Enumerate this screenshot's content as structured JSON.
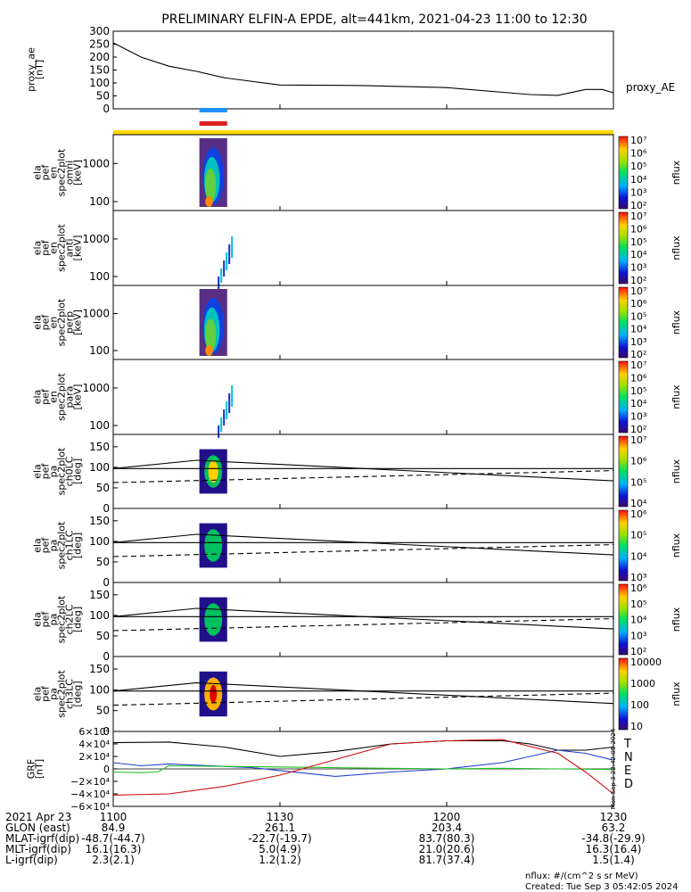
{
  "title": "PRELIMINARY ELFIN-A EPDE, alt=441km, 2021-04-23 11:00 to 12:30",
  "colors": {
    "proxy_ae_line": "#000000",
    "bar_blue": "#1e90ff",
    "bar_red": "#e02020",
    "bar_yellow": "#ffd700",
    "grf_T": "#000000",
    "grf_N": "#1f3fd0",
    "grf_E": "#22c022",
    "grf_D": "#d01010"
  },
  "chart_data": {
    "type": "line",
    "time_axis": {
      "start": "11:00",
      "end": "12:30",
      "tick_labels": [
        "1100",
        "1130",
        "1200",
        "1230"
      ]
    },
    "panels": [
      {
        "id": "proxy_ae",
        "ylabel": [
          "proxy_ae",
          "[nT]"
        ],
        "right_label": "proxy_AE",
        "yticks": [
          "0",
          "50",
          "100",
          "150",
          "200",
          "250",
          "300"
        ],
        "ylim": [
          0,
          300
        ],
        "series": [
          {
            "name": "proxy_AE",
            "x_min": [
              0,
              5,
              10,
              15,
              20,
              30,
              45,
              60,
              75,
              80,
              85,
              88,
              90
            ],
            "values": [
              255,
              200,
              165,
              145,
              120,
              92,
              90,
              82,
              55,
              52,
              75,
              75,
              62
            ]
          }
        ]
      },
      {
        "id": "omni",
        "ylabel": [
          "ela",
          "pef",
          "en",
          "spec2plot",
          "omni",
          "[keV]"
        ],
        "yticks": [
          "100",
          "1000"
        ],
        "colorbar": {
          "label": "nflux",
          "ticks": [
            "10²",
            "10³",
            "10⁴",
            "10⁵",
            "10⁶",
            "10⁷"
          ]
        }
      },
      {
        "id": "anti",
        "ylabel": [
          "ela",
          "pef",
          "en",
          "spec2plot",
          "anti",
          "[keV]"
        ],
        "yticks": [
          "100",
          "1000"
        ],
        "colorbar": {
          "label": "nflux",
          "ticks": [
            "10²",
            "10³",
            "10⁴",
            "10⁵",
            "10⁶",
            "10⁷"
          ]
        }
      },
      {
        "id": "perp",
        "ylabel": [
          "ela",
          "pef",
          "en",
          "spec2plot",
          "perp",
          "[keV]"
        ],
        "yticks": [
          "100",
          "1000"
        ],
        "colorbar": {
          "label": "nflux",
          "ticks": [
            "10²",
            "10³",
            "10⁴",
            "10⁵",
            "10⁶",
            "10⁷"
          ]
        }
      },
      {
        "id": "para",
        "ylabel": [
          "ela",
          "pef",
          "en",
          "spec2plot",
          "para",
          "[keV]"
        ],
        "yticks": [
          "100",
          "1000"
        ],
        "colorbar": {
          "label": "nflux",
          "ticks": [
            "10²",
            "10³",
            "10⁴",
            "10⁵",
            "10⁶",
            "10⁷"
          ]
        }
      },
      {
        "id": "ch0LC",
        "ylabel": [
          "ela",
          "pef",
          "pa",
          "spec2plot",
          "ch0LC",
          "[deg]"
        ],
        "yticks": [
          "0",
          "50",
          "100",
          "150"
        ],
        "ylim": [
          0,
          180
        ],
        "colorbar": {
          "label": "nflux",
          "ticks": [
            "10⁴",
            "10⁵",
            "10⁶",
            "10⁷"
          ]
        }
      },
      {
        "id": "ch1LC",
        "ylabel": [
          "ela",
          "pef",
          "pa",
          "spec2plot",
          "ch1LC",
          "[deg]"
        ],
        "yticks": [
          "0",
          "50",
          "100",
          "150"
        ],
        "ylim": [
          0,
          180
        ],
        "colorbar": {
          "label": "nflux",
          "ticks": [
            "10³",
            "10⁴",
            "10⁵",
            "10⁶"
          ]
        }
      },
      {
        "id": "ch2LC",
        "ylabel": [
          "ela",
          "pef",
          "pa",
          "spec2plot",
          "ch2LC",
          "[deg]"
        ],
        "yticks": [
          "0",
          "50",
          "100",
          "150"
        ],
        "ylim": [
          0,
          180
        ],
        "colorbar": {
          "label": "nflux",
          "ticks": [
            "10²",
            "10³",
            "10⁴",
            "10⁵",
            "10⁶"
          ]
        }
      },
      {
        "id": "ch3LC",
        "ylabel": [
          "ela",
          "pef",
          "pa",
          "spec2plot",
          "ch3LC",
          "[deg]"
        ],
        "yticks": [
          "0",
          "50",
          "100",
          "150"
        ],
        "ylim": [
          0,
          180
        ],
        "colorbar": {
          "label": "nflux",
          "ticks": [
            "10",
            "100",
            "1000",
            "10000"
          ]
        }
      },
      {
        "id": "GRF",
        "ylabel": [
          "GRF",
          "[nT]"
        ],
        "yticks": [
          "−6×10⁴",
          "−4×10⁴",
          "−2×10⁴",
          "0",
          "2×10⁴",
          "4×10⁴",
          "6×10⁴"
        ],
        "ylim": [
          -60000,
          60000
        ],
        "legend": [
          "T",
          "N",
          "E",
          "D"
        ],
        "series": [
          {
            "name": "T",
            "x_min": [
              0,
              10,
              20,
              30,
              40,
              50,
              60,
              70,
              75,
              80,
              85,
              90
            ],
            "values": [
              42000,
              43000,
              35000,
              20000,
              28000,
              40000,
              45000,
              45000,
              40000,
              30000,
              30000,
              35000
            ]
          },
          {
            "name": "N",
            "x_min": [
              0,
              5,
              10,
              15,
              25,
              40,
              50,
              60,
              70,
              80,
              85,
              90
            ],
            "values": [
              10000,
              5000,
              8000,
              6000,
              2000,
              -12000,
              -5000,
              0,
              10000,
              30000,
              25000,
              14000
            ]
          },
          {
            "name": "E",
            "x_min": [
              0,
              5,
              8,
              10,
              20,
              40,
              60,
              70,
              80,
              90
            ],
            "values": [
              -5000,
              -6000,
              -5000,
              5000,
              4000,
              2000,
              0,
              1000,
              0,
              -1000
            ]
          },
          {
            "name": "D",
            "x_min": [
              0,
              10,
              20,
              30,
              40,
              50,
              60,
              70,
              80,
              85,
              90
            ],
            "values": [
              -42000,
              -40000,
              -28000,
              -10000,
              15000,
              40000,
              45000,
              47000,
              25000,
              -5000,
              -40000
            ]
          }
        ]
      }
    ],
    "spectrogram_time": {
      "start_min": 15.5,
      "end_min": 20.5
    },
    "lc_lines": {
      "solid_upper": {
        "x_min": [
          0,
          15,
          90
        ],
        "values": [
          97,
          117,
          67
        ]
      },
      "solid_flat": {
        "value": 97
      },
      "dashed": {
        "x_min": [
          0,
          90
        ],
        "values": [
          63,
          92
        ]
      }
    },
    "ephemeris": {
      "rows": [
        {
          "label": "2021 Apr 23",
          "values": [
            "1100",
            "1130",
            "1200",
            "1230"
          ]
        },
        {
          "label": "GLON (east)",
          "values": [
            "84.9",
            "261.1",
            "203.4",
            "63.2"
          ]
        },
        {
          "label": "MLAT-igrf(dip)",
          "values": [
            "-48.7(-44.7)",
            "-22.7(-19.7)",
            "83.7(80.3)",
            "-34.8(-29.9)"
          ]
        },
        {
          "label": "MLT-igrf(dip)",
          "values": [
            "16.1(16.3)",
            "5.0(4.9)",
            "21.0(20.6)",
            "16.3(16.4)"
          ]
        },
        {
          "label": "L-igrf(dip)",
          "values": [
            "2.3(2.1)",
            "1.2(1.2)",
            "81.7(37.4)",
            "1.5(1.4)"
          ]
        }
      ]
    }
  },
  "footer": {
    "units": "nflux: #/(cm^2 s sr MeV)",
    "created": "Created: Tue Sep  3 05:42:05 2024",
    "side_stamp": "Mon Sep  3 22:42:05 2024"
  }
}
